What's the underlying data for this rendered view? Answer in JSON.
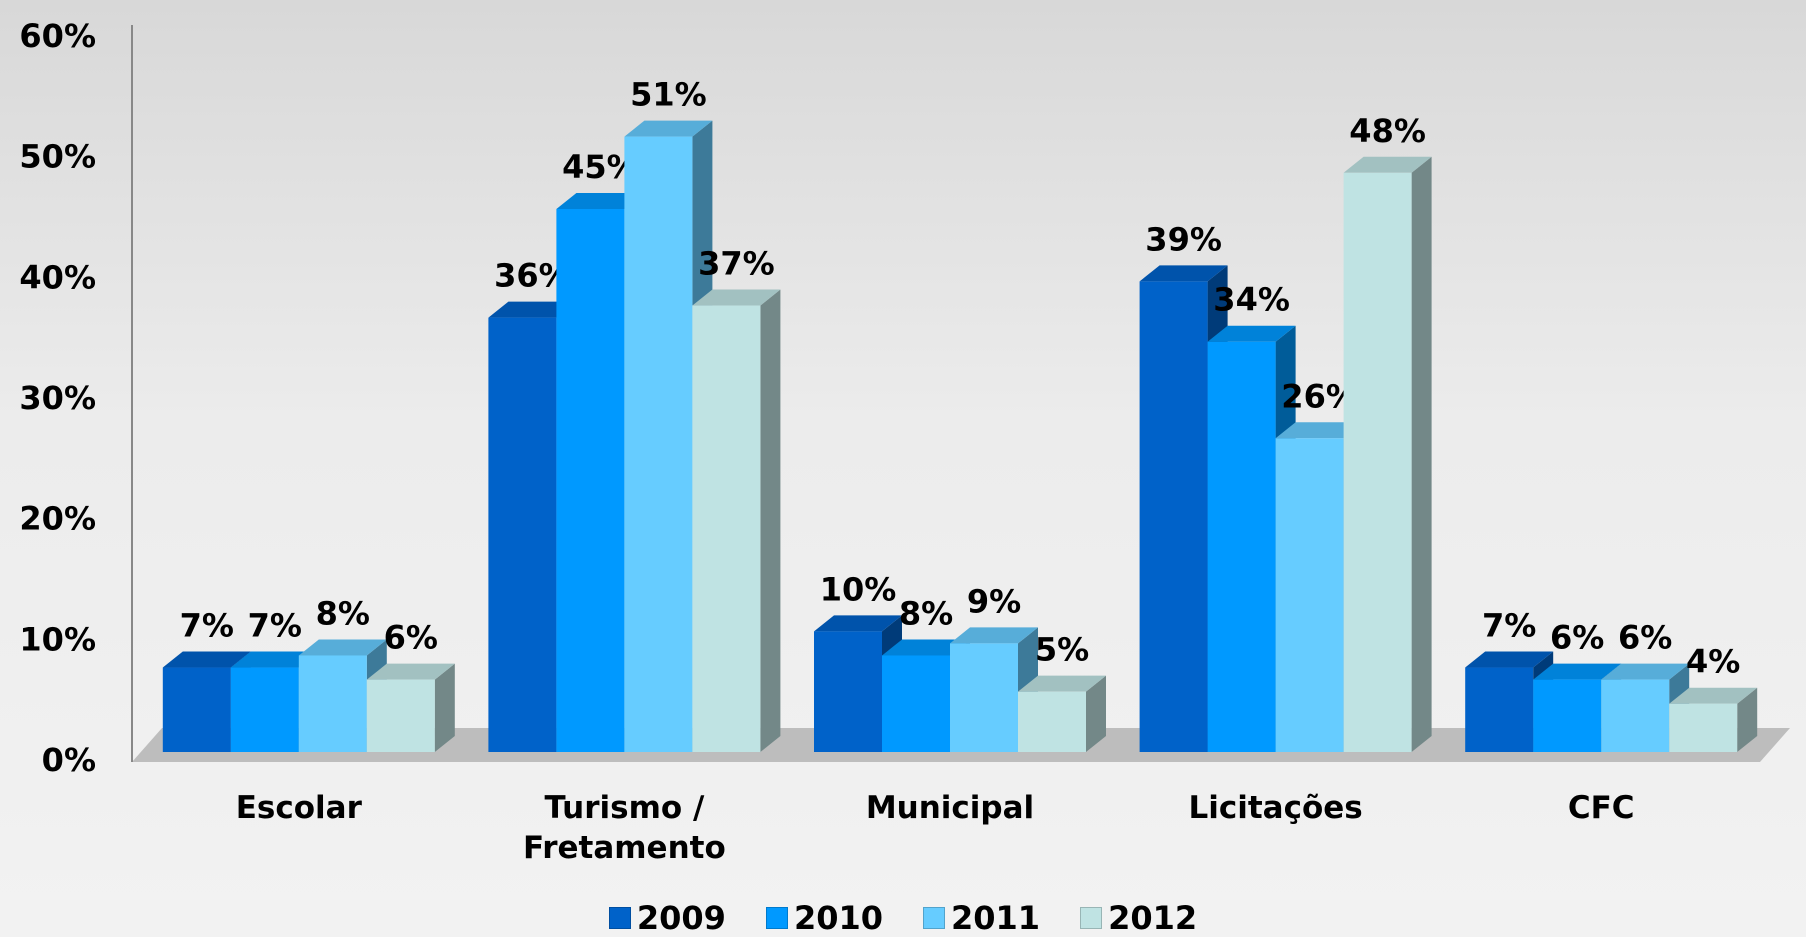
{
  "chart_data": {
    "type": "bar3d",
    "categories": [
      "Escolar",
      "Turismo / Fretamento",
      "Municipal",
      "Licitações",
      "CFC"
    ],
    "series": [
      {
        "name": "2009",
        "color": "#0062c9",
        "values": [
          7,
          36,
          10,
          39,
          7
        ],
        "value_labels": [
          "7%",
          "36%",
          "10%",
          "39%",
          "7%"
        ]
      },
      {
        "name": "2010",
        "color": "#0099ff",
        "values": [
          7,
          45,
          8,
          34,
          6
        ],
        "value_labels": [
          "7%",
          "45%",
          "8%",
          "34%",
          "6%"
        ]
      },
      {
        "name": "2011",
        "color": "#66ccff",
        "values": [
          8,
          51,
          9,
          26,
          6
        ],
        "value_labels": [
          "8%",
          "51%",
          "9%",
          "26%",
          "6%"
        ]
      },
      {
        "name": "2012",
        "color": "#bfe3e3",
        "values": [
          6,
          37,
          5,
          48,
          4
        ],
        "value_labels": [
          "6%",
          "37%",
          "5%",
          "48%",
          "4%"
        ]
      }
    ],
    "ylim": [
      0,
      60
    ],
    "yticks": [
      {
        "value": 0,
        "label": "0%"
      },
      {
        "value": 10,
        "label": "10%"
      },
      {
        "value": 20,
        "label": "20%"
      },
      {
        "value": 30,
        "label": "30%"
      },
      {
        "value": 40,
        "label": "40%"
      },
      {
        "value": 50,
        "label": "50%"
      },
      {
        "value": 60,
        "label": "60%"
      }
    ],
    "legend": "bottom"
  }
}
